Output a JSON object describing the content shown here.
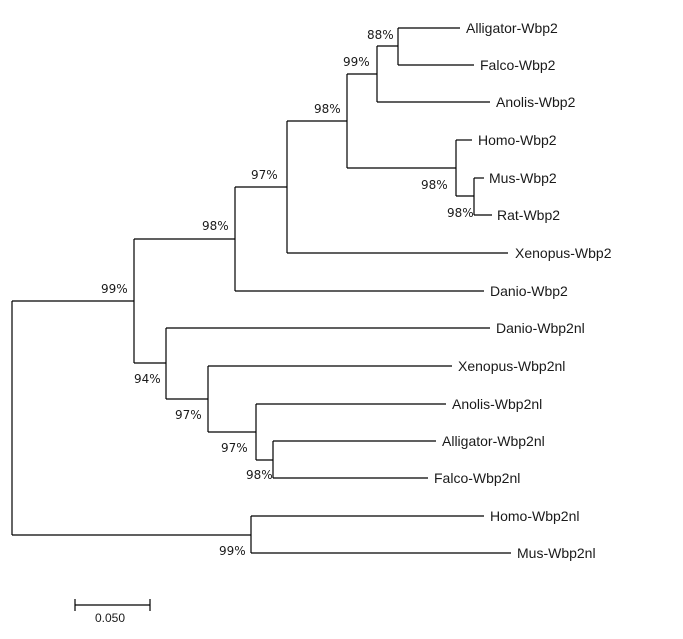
{
  "tree": {
    "leaves": [
      "Alligator-Wbp2",
      "Falco-Wbp2",
      "Anolis-Wbp2",
      "Homo-Wbp2",
      "Mus-Wbp2",
      "Rat-Wbp2",
      "Xenopus-Wbp2",
      "Danio-Wbp2",
      "Danio-Wbp2nl",
      "Xenopus-Wbp2nl",
      "Anolis-Wbp2nl",
      "Alligator-Wbp2nl",
      "Falco-Wbp2nl",
      "Homo-Wbp2nl",
      "Mus-Wbp2nl"
    ],
    "bootstrap": {
      "alligator_falco": "88%",
      "birds_anolis": "99%",
      "sauropsid_mammal": "98%",
      "mus_rat": "98%",
      "mammals": "98%",
      "tetrapods": "97%",
      "wbp2_clade": "98%",
      "root_in": "99%",
      "wbp2nl_clade": "94%",
      "xenopus_group": "97%",
      "anolis_group": "97%",
      "alligator_falco_nl": "98%",
      "homo_mus_nl": "99%"
    },
    "scale_bar": {
      "label": "0.050"
    }
  }
}
